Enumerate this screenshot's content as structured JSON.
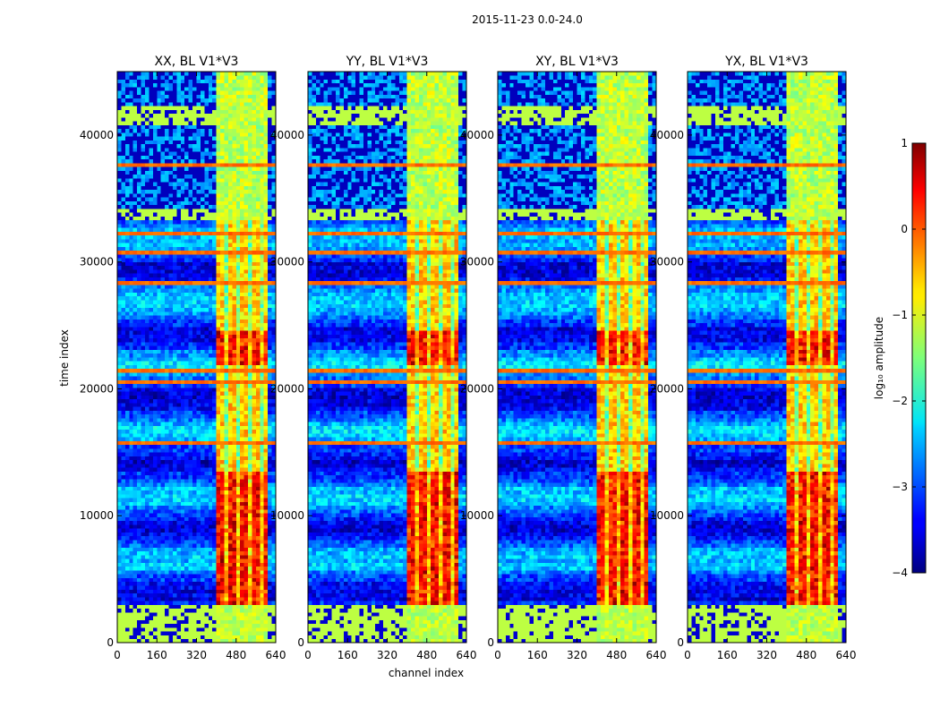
{
  "chart_data": {
    "type": "heatmap",
    "suptitle": "2015-11-23 0.0-24.0",
    "xlabel": "channel index",
    "ylabel": "time index",
    "xlim": [
      0,
      640
    ],
    "ylim": [
      0,
      45000
    ],
    "xticks": [
      0,
      160,
      320,
      480,
      640
    ],
    "yticks": [
      0,
      10000,
      20000,
      30000,
      40000
    ],
    "panels": [
      {
        "title": "XX, BL V1*V3"
      },
      {
        "title": "YY, BL V1*V3"
      },
      {
        "title": "XY, BL V1*V3"
      },
      {
        "title": "YX, BL V1*V3"
      }
    ],
    "colorbar": {
      "label": "log₁₀ amplitude",
      "min": -4,
      "max": 1,
      "ticks": [
        -4,
        -3,
        -2,
        -1,
        0,
        1
      ],
      "colormap": "jet"
    },
    "features": {
      "bright_band_channels": [
        400,
        600
      ],
      "flagged_rows": [
        [
          40800,
          42200
        ],
        [
          33300,
          34300
        ],
        [
          0,
          3000
        ]
      ],
      "flagged_value": -1.2,
      "peak_rows": [
        [
          22000,
          24500
        ],
        [
          3000,
          13500
        ]
      ]
    }
  }
}
